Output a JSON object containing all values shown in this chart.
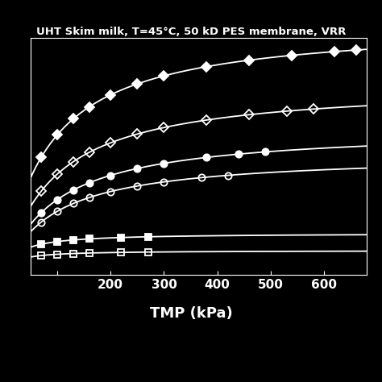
{
  "title": "UHT Skim milk, T=45°C, 50 kD PES membrane, VRR",
  "xlabel": "TMP (kPa)",
  "background_color": "#000000",
  "text_color": "#ffffff",
  "xlim": [
    50,
    680
  ],
  "figure_width": 4.74,
  "figure_height": 4.74,
  "series_params": [
    {
      "Jmax": 175,
      "Km": 80,
      "marker": "D",
      "filled": true,
      "x_pts": [
        70,
        100,
        130,
        160,
        200,
        250,
        300,
        380,
        460,
        540,
        620,
        660
      ]
    },
    {
      "Jmax": 133,
      "Km": 90,
      "marker": "D",
      "filled": false,
      "x_pts": [
        70,
        100,
        130,
        160,
        200,
        250,
        300,
        380,
        460,
        530,
        580
      ]
    },
    {
      "Jmax": 102,
      "Km": 95,
      "marker": "o",
      "filled": true,
      "x_pts": [
        70,
        100,
        130,
        160,
        200,
        250,
        300,
        380,
        440,
        490
      ]
    },
    {
      "Jmax": 84,
      "Km": 90,
      "marker": "o",
      "filled": false,
      "x_pts": [
        70,
        100,
        130,
        160,
        200,
        250,
        300,
        370,
        420
      ]
    },
    {
      "Jmax": 29,
      "Km": 25,
      "marker": "s",
      "filled": true,
      "x_pts": [
        70,
        100,
        130,
        160,
        220,
        270
      ]
    },
    {
      "Jmax": 17,
      "Km": 18,
      "marker": "s",
      "filled": false,
      "x_pts": [
        70,
        100,
        130,
        160,
        220,
        270
      ]
    }
  ],
  "xticks": [
    100,
    200,
    300,
    400,
    500,
    600
  ],
  "xticklabels": [
    "",
    "200",
    "300",
    "400",
    "500",
    "600"
  ],
  "marker_size": 6
}
